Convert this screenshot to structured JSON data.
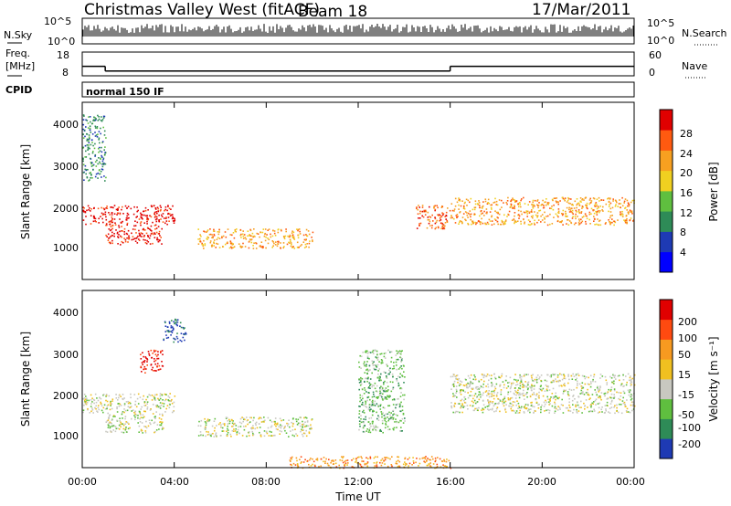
{
  "header": {
    "station": "Christmas Valley West (fitACF)",
    "beam": "Beam 18",
    "date": "17/Mar/2011"
  },
  "noise_panel": {
    "left_label": "N.Sky",
    "right_label": "N.Search",
    "left_ticks": [
      "10^5",
      "10^0"
    ],
    "right_ticks": [
      "10^5",
      "10^0"
    ]
  },
  "freq_panel": {
    "left_label_1": "Freq.",
    "left_label_2": "[MHz]",
    "right_label": "Nave",
    "left_ticks": [
      "18",
      "8"
    ],
    "right_ticks": [
      "60",
      "0"
    ]
  },
  "cpid_panel": {
    "label": "CPID",
    "program": "normal 150 IF"
  },
  "x_axis": {
    "title": "Time UT",
    "ticks": [
      "00:00",
      "04:00",
      "08:00",
      "12:00",
      "16:00",
      "20:00",
      "00:00"
    ]
  },
  "power_panel": {
    "ylabel": "Slant Range [km]",
    "yticks": [
      "1000",
      "2000",
      "3000",
      "4000"
    ],
    "colorbar_label": "Power [dB]",
    "colorbar_ticks": [
      "4",
      "8",
      "12",
      "16",
      "20",
      "24",
      "28"
    ],
    "colors": [
      "#0000ff",
      "#1e3ab4",
      "#2e8b57",
      "#5fbf3f",
      "#f0d020",
      "#f7a020",
      "#ff5a10",
      "#e00000"
    ]
  },
  "velocity_panel": {
    "ylabel": "Slant Range [km]",
    "yticks": [
      "1000",
      "2000",
      "3000",
      "4000"
    ],
    "colorbar_label": "Velocity [m s⁻¹]",
    "colorbar_ticks": [
      "200",
      "100",
      "50",
      "15",
      "-15",
      "-50",
      "-100",
      "-200"
    ],
    "colors": [
      "#1e3ab4",
      "#2e8b57",
      "#5fbf3f",
      "#c8c8c0",
      "#f0c020",
      "#f79a20",
      "#ff4a10",
      "#e00000"
    ]
  },
  "chart_data": {
    "type": "heatmap",
    "x_unit": "hours UT",
    "x_range": [
      0,
      24
    ],
    "y_range_km": [
      0,
      4500
    ],
    "frequency_mhz": [
      {
        "start_hour": 0,
        "end_hour": 1,
        "value": 12
      },
      {
        "start_hour": 1,
        "end_hour": 16,
        "value": 10
      },
      {
        "start_hour": 16,
        "end_hour": 24,
        "value": 12
      }
    ],
    "power_regions": [
      {
        "name": "band-1600",
        "x": [
          0,
          4
        ],
        "y": [
          1400,
          1900
        ],
        "level": 7
      },
      {
        "name": "band-1100",
        "x": [
          1,
          3.5
        ],
        "y": [
          900,
          1400
        ],
        "level": 7
      },
      {
        "name": "band-1000",
        "x": [
          5,
          10
        ],
        "y": [
          800,
          1300
        ],
        "level": 5
      },
      {
        "name": "band-1500",
        "x": [
          14.5,
          16
        ],
        "y": [
          1300,
          1900
        ],
        "level": 6
      },
      {
        "name": "band-1700",
        "x": [
          16,
          24
        ],
        "y": [
          1400,
          2100
        ],
        "level": 5
      },
      {
        "name": "band-far",
        "x": [
          0,
          1
        ],
        "y": [
          2500,
          4200
        ],
        "level": 2
      }
    ],
    "velocity_regions": [
      {
        "name": "grey-1600",
        "x": [
          0,
          4
        ],
        "y": [
          1400,
          1900
        ],
        "level": 3
      },
      {
        "name": "grey-1100",
        "x": [
          1,
          3.5
        ],
        "y": [
          900,
          1400
        ],
        "level": 3
      },
      {
        "name": "grey-1000",
        "x": [
          5,
          10
        ],
        "y": [
          800,
          1300
        ],
        "level": 3
      },
      {
        "name": "grey-1700",
        "x": [
          16,
          24
        ],
        "y": [
          1400,
          2400
        ],
        "level": 3
      },
      {
        "name": "red-patch",
        "x": [
          2.5,
          3.5
        ],
        "y": [
          2400,
          3000
        ],
        "level": 7
      },
      {
        "name": "blue-patch",
        "x": [
          3.5,
          4.5
        ],
        "y": [
          3200,
          3800
        ],
        "level": 0
      },
      {
        "name": "green-streak",
        "x": [
          12,
          14
        ],
        "y": [
          900,
          3000
        ],
        "level": 2
      },
      {
        "name": "orange-ground",
        "x": [
          9,
          16
        ],
        "y": [
          0,
          300
        ],
        "level": 5
      }
    ]
  }
}
